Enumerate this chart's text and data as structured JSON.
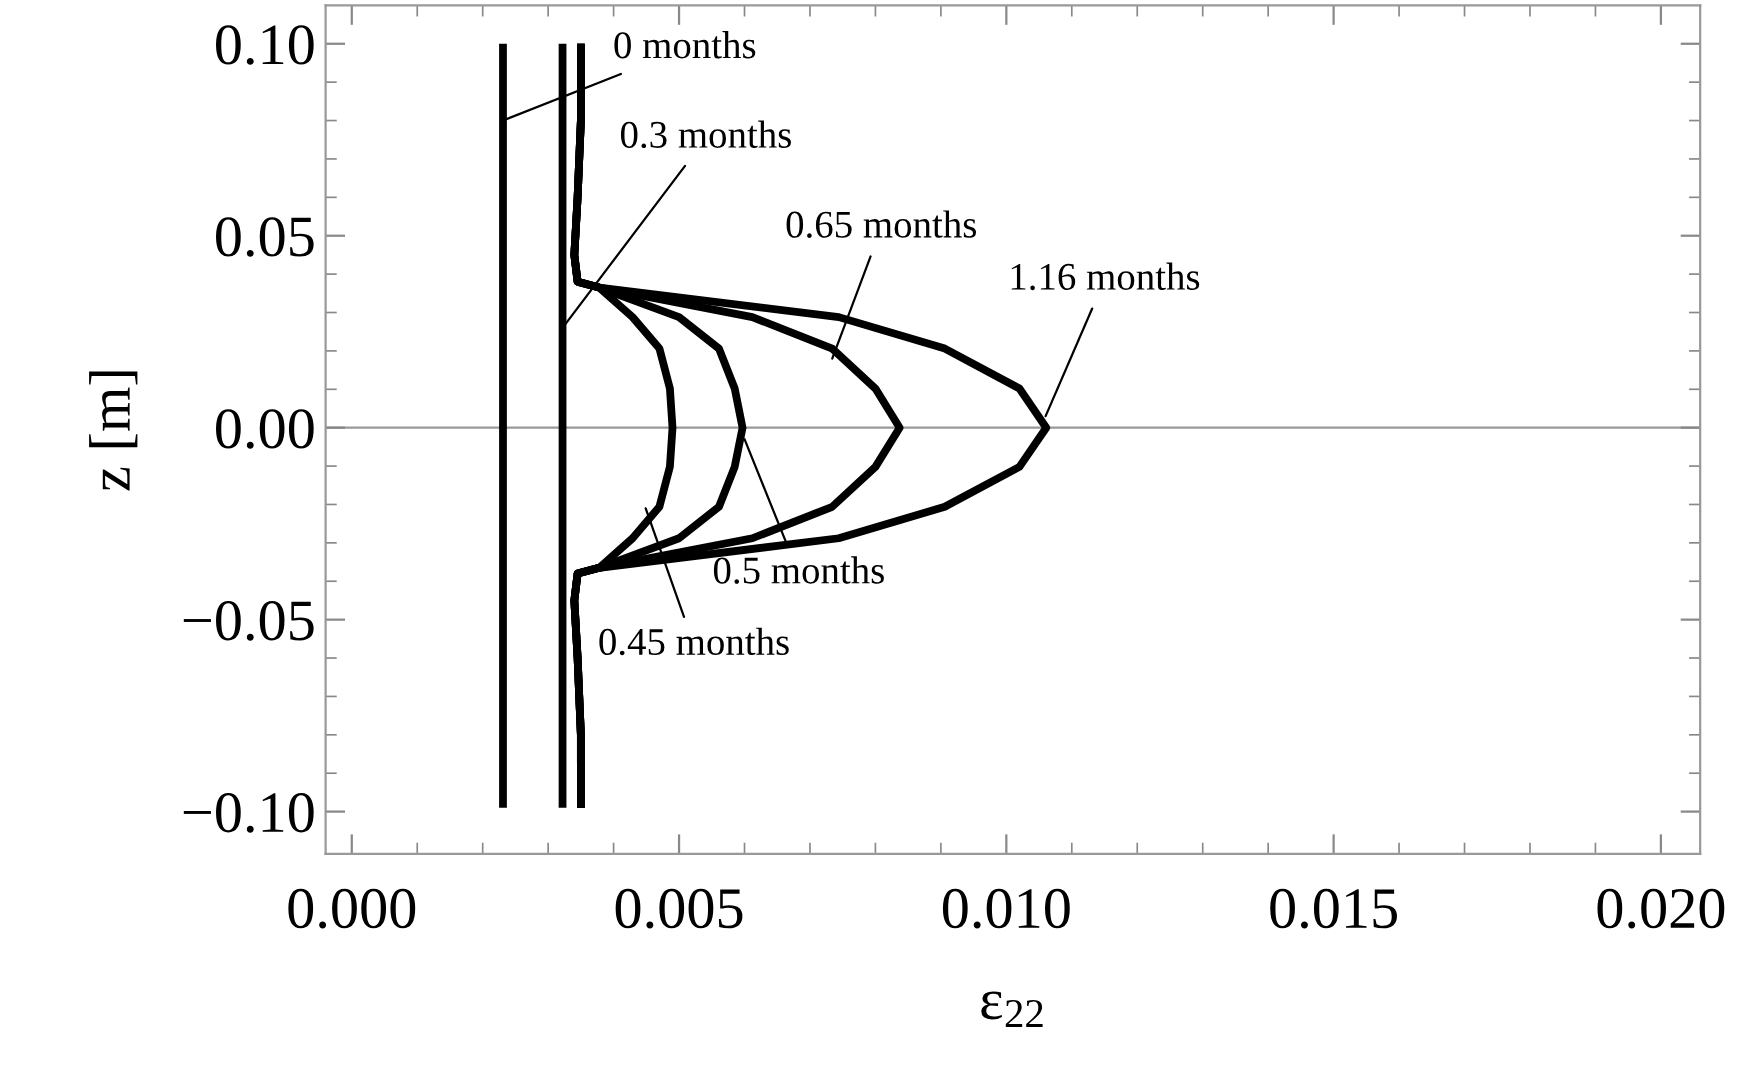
{
  "chart_data": {
    "type": "line",
    "xlabel": "ε$_{22}$",
    "ylabel": "z [m]",
    "grid": false,
    "legend": false,
    "marker": "none",
    "line_style": "solid",
    "xlim": [
      -0.0004,
      0.0206
    ],
    "ylim": [
      -0.111,
      0.11
    ],
    "xticks": [
      {
        "value": 0.0,
        "label": "0.000"
      },
      {
        "value": 0.001,
        "label": null
      },
      {
        "value": 0.002,
        "label": null
      },
      {
        "value": 0.003,
        "label": null
      },
      {
        "value": 0.004,
        "label": null
      },
      {
        "value": 0.005,
        "label": "0.005"
      },
      {
        "value": 0.006,
        "label": null
      },
      {
        "value": 0.007,
        "label": null
      },
      {
        "value": 0.008,
        "label": null
      },
      {
        "value": 0.009,
        "label": null
      },
      {
        "value": 0.01,
        "label": "0.010"
      },
      {
        "value": 0.011,
        "label": null
      },
      {
        "value": 0.012,
        "label": null
      },
      {
        "value": 0.013,
        "label": null
      },
      {
        "value": 0.014,
        "label": null
      },
      {
        "value": 0.015,
        "label": "0.015"
      },
      {
        "value": 0.016,
        "label": null
      },
      {
        "value": 0.017,
        "label": null
      },
      {
        "value": 0.018,
        "label": null
      },
      {
        "value": 0.019,
        "label": null
      },
      {
        "value": 0.02,
        "label": "0.020"
      }
    ],
    "yticks": [
      {
        "value": -0.1,
        "label": "−0.10"
      },
      {
        "value": -0.09,
        "label": null
      },
      {
        "value": -0.08,
        "label": null
      },
      {
        "value": -0.07,
        "label": null
      },
      {
        "value": -0.06,
        "label": null
      },
      {
        "value": -0.05,
        "label": "−0.05"
      },
      {
        "value": -0.04,
        "label": null
      },
      {
        "value": -0.03,
        "label": null
      },
      {
        "value": -0.02,
        "label": null
      },
      {
        "value": -0.01,
        "label": null
      },
      {
        "value": 0.0,
        "label": "0.00"
      },
      {
        "value": 0.01,
        "label": null
      },
      {
        "value": 0.02,
        "label": null
      },
      {
        "value": 0.03,
        "label": null
      },
      {
        "value": 0.04,
        "label": null
      },
      {
        "value": 0.05,
        "label": "0.05"
      },
      {
        "value": 0.06,
        "label": null
      },
      {
        "value": 0.07,
        "label": null
      },
      {
        "value": 0.08,
        "label": null
      },
      {
        "value": 0.09,
        "label": null
      },
      {
        "value": 0.1,
        "label": "0.10"
      }
    ],
    "ref_lines": [
      {
        "axis": "y",
        "value": 0,
        "color": "#999999"
      }
    ],
    "series": [
      {
        "color": "#000000",
        "x": [
          0.00231,
          0.00231
        ],
        "values": [
          0.099,
          -0.098
        ]
      },
      {
        "color": "#000000",
        "x": [
          0.00322,
          0.00322
        ],
        "values": [
          0.099,
          -0.098
        ]
      },
      {
        "color": "#000000",
        "x": [
          0.0035,
          0.0035,
          0.00345,
          0.0034,
          0.00345,
          0.00378,
          0.00429,
          0.0047,
          0.00486,
          0.0049,
          0.00486,
          0.0047,
          0.00429,
          0.00378,
          0.00345,
          0.0034,
          0.00345,
          0.0035,
          0.0035
        ],
        "values": [
          0.099,
          0.08,
          0.06,
          0.045,
          0.038,
          0.0365,
          0.0288,
          0.0206,
          0.0102,
          0.0,
          -0.0102,
          -0.0206,
          -0.0288,
          -0.0365,
          -0.038,
          -0.045,
          -0.06,
          -0.08,
          -0.098
        ]
      },
      {
        "color": "#000000",
        "x": [
          0.0035,
          0.0035,
          0.00345,
          0.0034,
          0.00345,
          0.00378,
          0.005,
          0.00561,
          0.00585,
          0.00597,
          0.00585,
          0.00561,
          0.005,
          0.00378,
          0.00345,
          0.0034,
          0.00345,
          0.0035,
          0.0035
        ],
        "values": [
          0.099,
          0.08,
          0.06,
          0.045,
          0.038,
          0.0365,
          0.0288,
          0.0206,
          0.0102,
          0.0,
          -0.0102,
          -0.0206,
          -0.0288,
          -0.0365,
          -0.038,
          -0.045,
          -0.06,
          -0.08,
          -0.098
        ]
      },
      {
        "color": "#000000",
        "x": [
          0.0035,
          0.0035,
          0.00345,
          0.0034,
          0.00345,
          0.00378,
          0.00612,
          0.00734,
          0.008,
          0.00837,
          0.008,
          0.00734,
          0.00612,
          0.00378,
          0.00345,
          0.0034,
          0.00345,
          0.0035,
          0.0035
        ],
        "values": [
          0.099,
          0.08,
          0.06,
          0.045,
          0.038,
          0.0365,
          0.0288,
          0.0206,
          0.0102,
          0.0,
          -0.0102,
          -0.0206,
          -0.0288,
          -0.0365,
          -0.038,
          -0.045,
          -0.06,
          -0.08,
          -0.098
        ]
      },
      {
        "color": "#000000",
        "x": [
          0.0035,
          0.0035,
          0.00345,
          0.0034,
          0.00345,
          0.00378,
          0.00744,
          0.00906,
          0.0102,
          0.01061,
          0.0102,
          0.00906,
          0.00744,
          0.00378,
          0.00345,
          0.0034,
          0.00345,
          0.0035,
          0.0035
        ],
        "values": [
          0.099,
          0.08,
          0.06,
          0.045,
          0.038,
          0.0365,
          0.0288,
          0.0206,
          0.0102,
          0.0,
          -0.0102,
          -0.0206,
          -0.0288,
          -0.0365,
          -0.038,
          -0.045,
          -0.06,
          -0.08,
          -0.098
        ]
      }
    ],
    "annotations": [
      {
        "text": "0 months",
        "x": 0.00231,
        "y": 0.08
      },
      {
        "text": "0.3 months",
        "x": 0.00322,
        "y": 0.026
      },
      {
        "text": "0.65 months",
        "x": 0.00734,
        "y": 0.018
      },
      {
        "text": "1.16 months",
        "x": 0.0106,
        "y": 0.003
      },
      {
        "text": "0.5 months",
        "x": 0.006,
        "y": -0.003
      },
      {
        "text": "0.45 months",
        "x": 0.00449,
        "y": -0.021
      }
    ]
  }
}
